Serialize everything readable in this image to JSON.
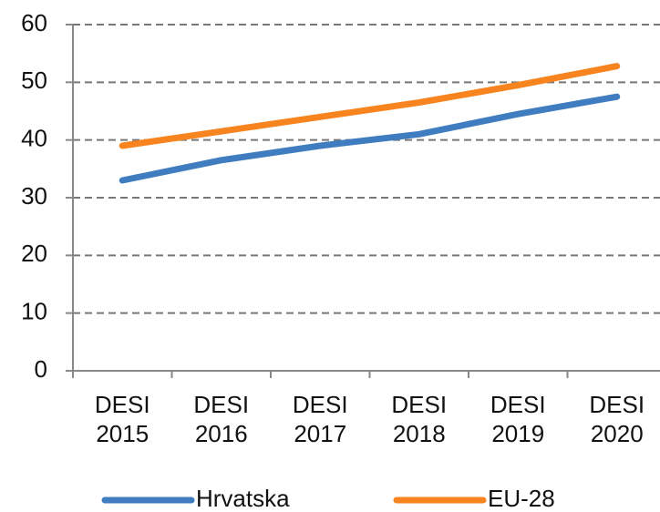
{
  "chart_data": {
    "type": "line",
    "categories": [
      "DESI 2015",
      "DESI 2016",
      "DESI 2017",
      "DESI 2018",
      "DESI 2019",
      "DESI 2020"
    ],
    "series": [
      {
        "name": "Hrvatska",
        "color": "#3f7cc0",
        "values": [
          33,
          36.5,
          39,
          41,
          44.5,
          47.5
        ]
      },
      {
        "name": "EU-28",
        "color": "#f7841f",
        "values": [
          39,
          41.5,
          44,
          46.5,
          49.5,
          52.8
        ]
      }
    ],
    "ylim": [
      0,
      60
    ],
    "yticks": [
      0,
      10,
      20,
      30,
      40,
      50,
      60
    ],
    "grid": true,
    "legend": "bottom"
  }
}
